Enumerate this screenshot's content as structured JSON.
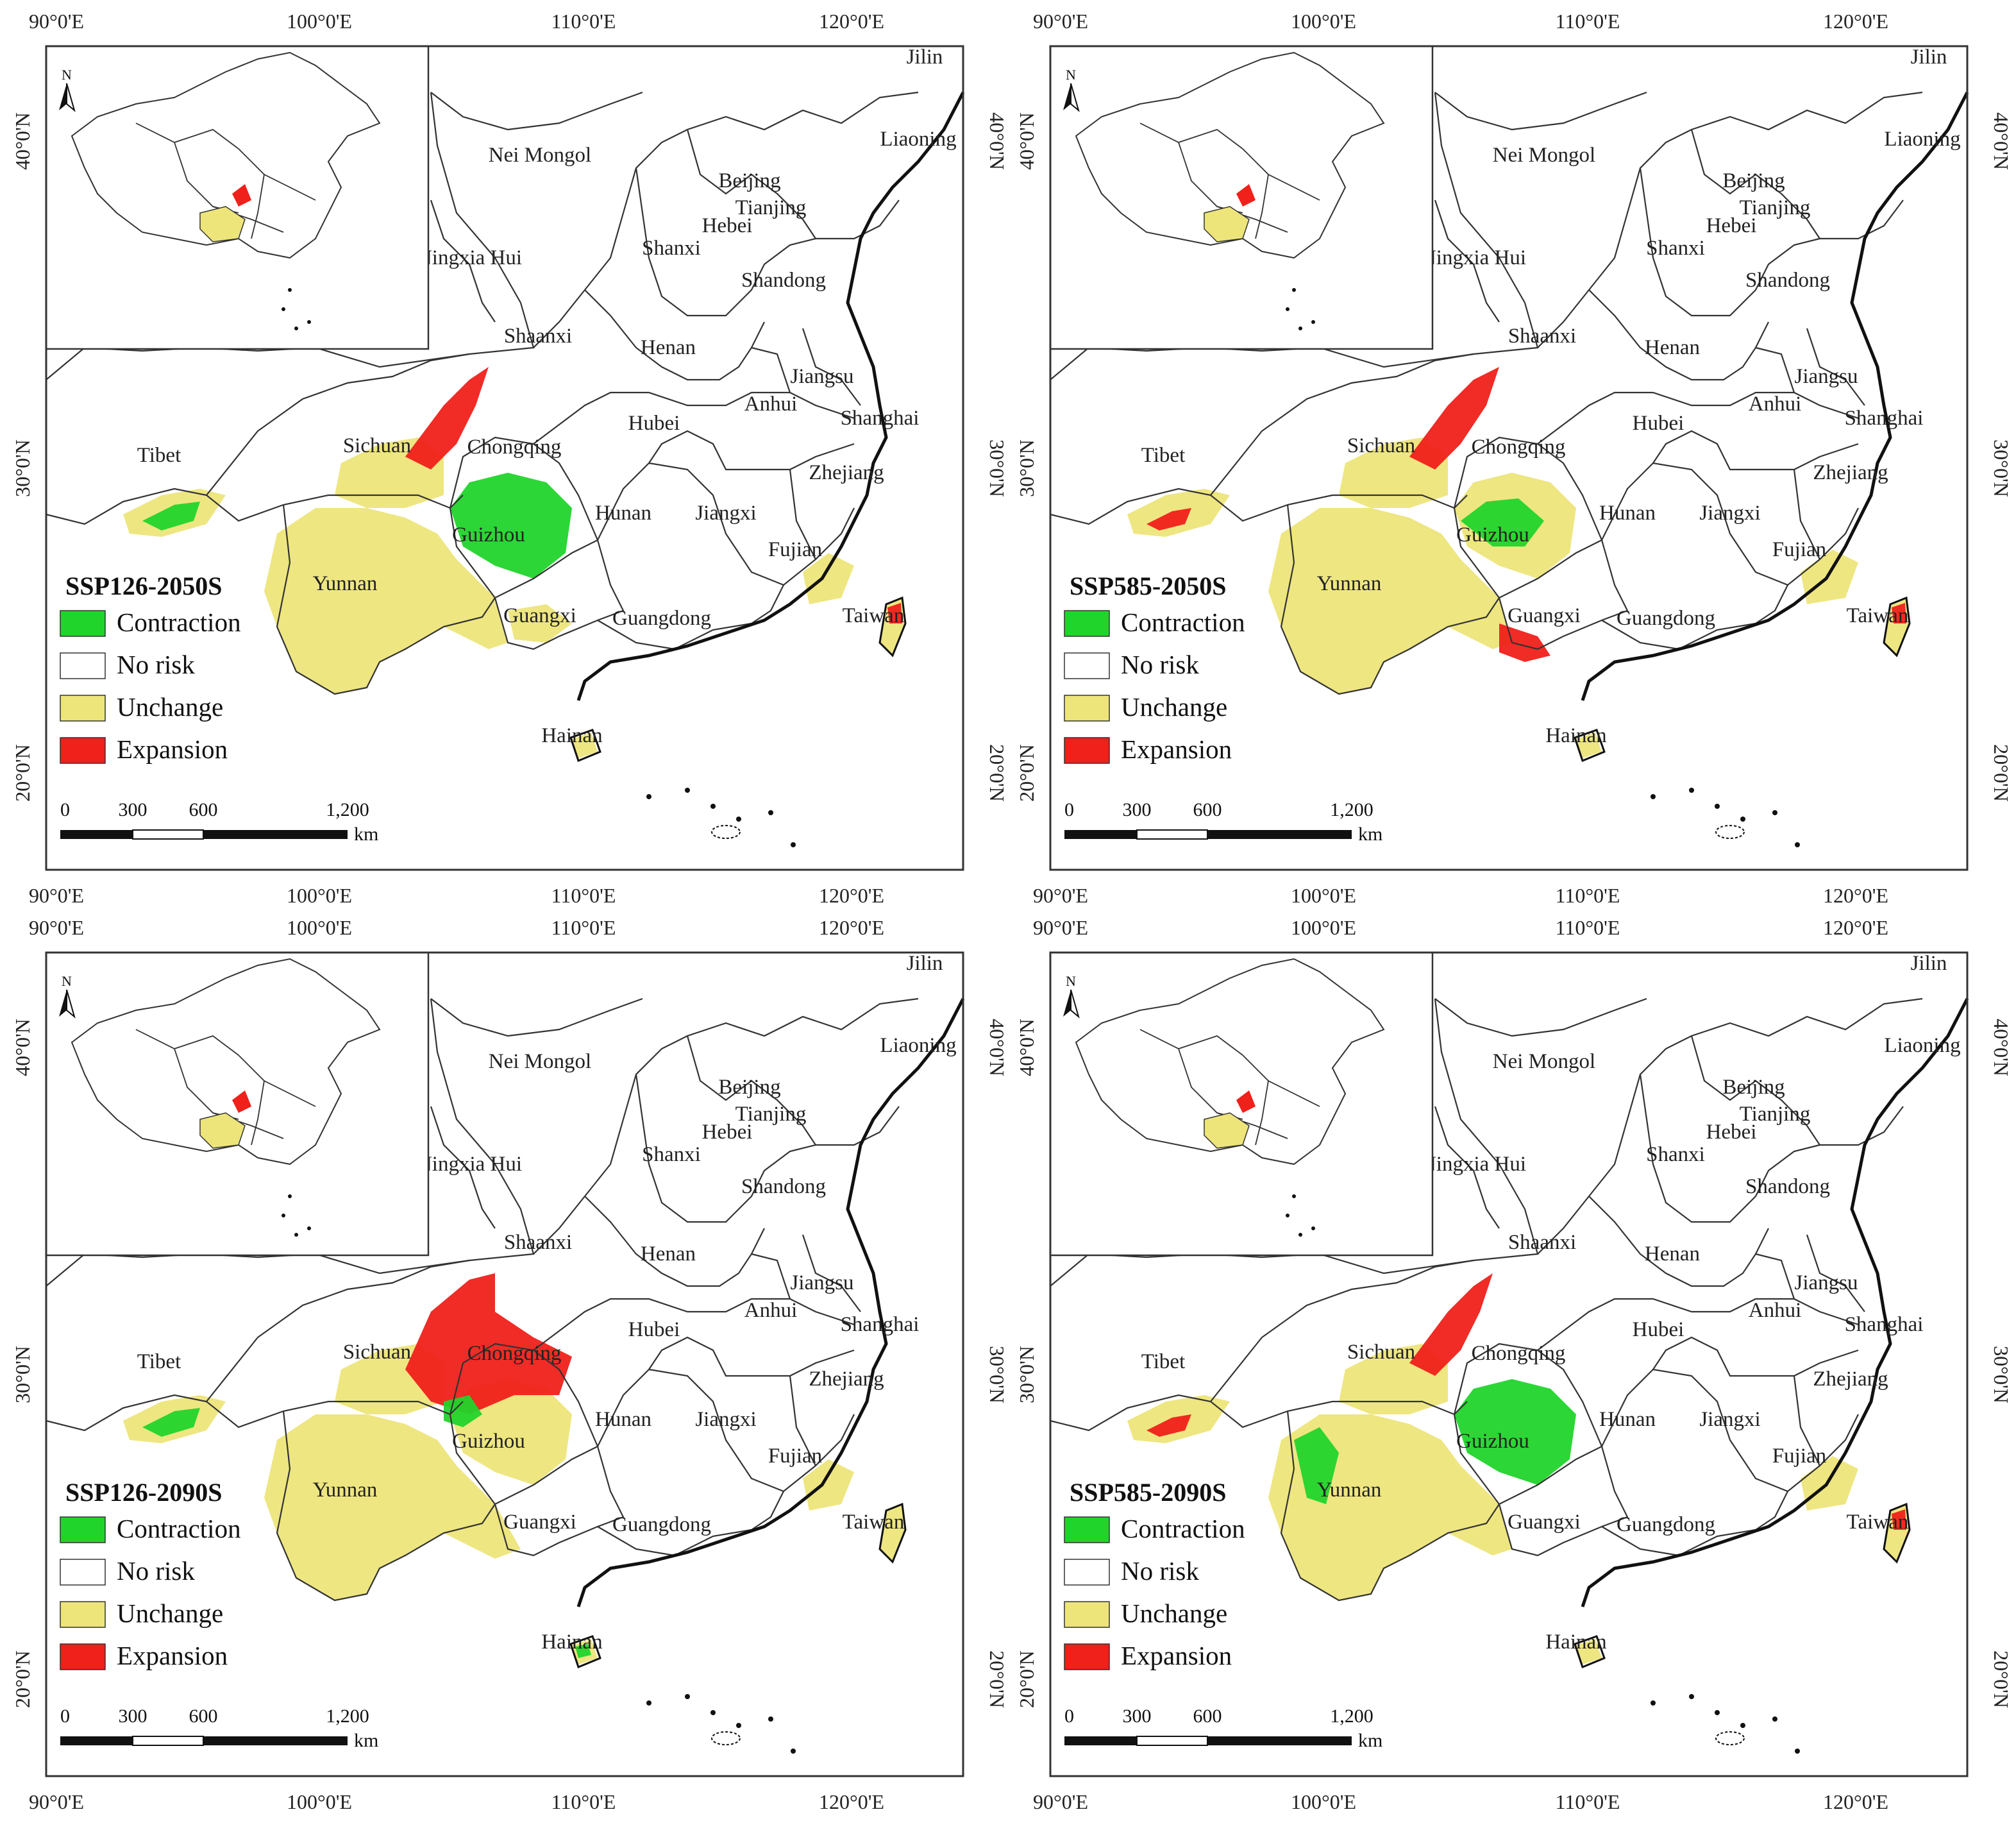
{
  "figure": {
    "axes": {
      "lon_ticks": [
        "90°0'E",
        "100°0'E",
        "110°0'E",
        "120°0'E"
      ],
      "lat_ticks": [
        "40°0'N",
        "30°0'N",
        "20°0'N"
      ]
    },
    "legend": {
      "items": [
        {
          "label": "Contraction",
          "color": "#21d42b"
        },
        {
          "label": "No risk",
          "color": "#ffffff"
        },
        {
          "label": "Unchange",
          "color": "#ede57a"
        },
        {
          "label": "Expansion",
          "color": "#f0201a"
        }
      ]
    },
    "scalebar": {
      "ticks": [
        "0",
        "300",
        "600",
        "1,200"
      ],
      "unit": "km"
    },
    "inset": {
      "north_label": "N"
    },
    "provinces": [
      "Jilin",
      "Nei Mongol",
      "Liaoning",
      "Beijing",
      "Tianjing",
      "Hebei",
      "Ningxia Hui",
      "Shanxi",
      "Shandong",
      "Shaanxi",
      "Henan",
      "Jiangsu",
      "Anhui",
      "Shanghai",
      "Hubei",
      "Sichuan",
      "Chongqing",
      "Tibet",
      "Zhejiang",
      "Hunan",
      "Jiangxi",
      "Guizhou",
      "Fujian",
      "Yunnan",
      "Guangxi",
      "Guangdong",
      "Taiwan",
      "Hainan"
    ],
    "panels": [
      {
        "scenario": "SSP126-2050S"
      },
      {
        "scenario": "SSP585-2050S"
      },
      {
        "scenario": "SSP126-2090S"
      },
      {
        "scenario": "SSP585-2090S"
      }
    ]
  }
}
